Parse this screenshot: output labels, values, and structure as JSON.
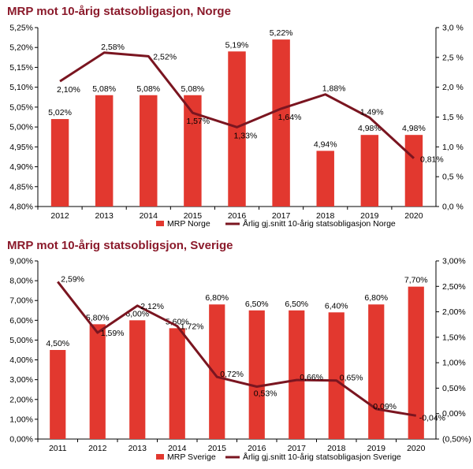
{
  "colors": {
    "bar": "#e2382f",
    "line": "#7a1520",
    "title": "#8b1a2b",
    "axis": "#000000"
  },
  "chart_data": [
    {
      "type": "bar",
      "title": "MRP mot 10-årig statsobligasjon, Norge",
      "categories": [
        "2012",
        "2013",
        "2014",
        "2015",
        "2016",
        "2017",
        "2018",
        "2019",
        "2020"
      ],
      "series": [
        {
          "name": "MRP Norge",
          "type": "bar",
          "axis": "left",
          "values": [
            5.02,
            5.08,
            5.08,
            5.08,
            5.19,
            5.22,
            4.94,
            4.98,
            4.98
          ],
          "labels": [
            "5,02%",
            "5,08%",
            "5,08%",
            "5,08%",
            "5,19%",
            "5,22%",
            "4,94%",
            "4,98%",
            "4,98%"
          ]
        },
        {
          "name": "Årlig gj.snitt 10-årig statsobligasjon Norge",
          "type": "line",
          "axis": "right",
          "values": [
            2.1,
            2.58,
            2.52,
            1.57,
            1.33,
            1.64,
            1.88,
            1.49,
            0.81
          ],
          "labels": [
            "2,10%",
            "2,58%",
            "2,52%",
            "1,57%",
            "1,33%",
            "1,64%",
            "1,88%",
            "1,49%",
            "0,81%"
          ]
        }
      ],
      "left_axis": {
        "min": 4.8,
        "max": 5.25,
        "ticks": [
          "4,80%",
          "4,85%",
          "4,90%",
          "4,95%",
          "5,00%",
          "5,05%",
          "5,10%",
          "5,15%",
          "5,20%",
          "5,25%"
        ]
      },
      "right_axis": {
        "min": 0.0,
        "max": 3.0,
        "ticks": [
          "0,0 %",
          "0,5 %",
          "1,0 %",
          "1,5 %",
          "2,0 %",
          "2,5 %",
          "3,0 %"
        ]
      },
      "legend_position": "bottom"
    },
    {
      "type": "bar",
      "title": "MRP mot 10-årig statsobligsjon, Sverige",
      "categories": [
        "2011",
        "2012",
        "2013",
        "2014",
        "2015",
        "2016",
        "2017",
        "2018",
        "2019",
        "2020"
      ],
      "series": [
        {
          "name": "MRP Sverige",
          "type": "bar",
          "axis": "left",
          "values": [
            4.5,
            5.8,
            6.0,
            5.6,
            6.8,
            6.5,
            6.5,
            6.4,
            6.8,
            7.7
          ],
          "labels": [
            "4,50%",
            "5,80%",
            "6,00%",
            "5,60%",
            "6,80%",
            "6,50%",
            "6,50%",
            "6,40%",
            "6,80%",
            "7,70%"
          ]
        },
        {
          "name": "Årlig gj.snitt 10-årig statsobligasjon Sverige",
          "type": "line",
          "axis": "right",
          "values": [
            2.59,
            1.59,
            2.12,
            1.72,
            0.72,
            0.53,
            0.66,
            0.65,
            0.09,
            -0.04
          ],
          "labels": [
            "2,59%",
            "1,59%",
            "2,12%",
            "1,72%",
            "0,72%",
            "0,53%",
            "0,66%",
            "0,65%",
            "0,09%",
            "-0,04%"
          ]
        }
      ],
      "left_axis": {
        "min": 0.0,
        "max": 9.0,
        "ticks": [
          "0,00%",
          "1,00%",
          "2,00%",
          "3,00%",
          "4,00%",
          "5,00%",
          "6,00%",
          "7,00%",
          "8,00%",
          "9,00%"
        ]
      },
      "right_axis": {
        "min": -0.5,
        "max": 3.0,
        "ticks": [
          "(0,50%)",
          "0,00%",
          "0,50%",
          "1,00%",
          "1,50%",
          "2,00%",
          "2,50%",
          "3,00%"
        ]
      },
      "legend_position": "bottom"
    }
  ]
}
